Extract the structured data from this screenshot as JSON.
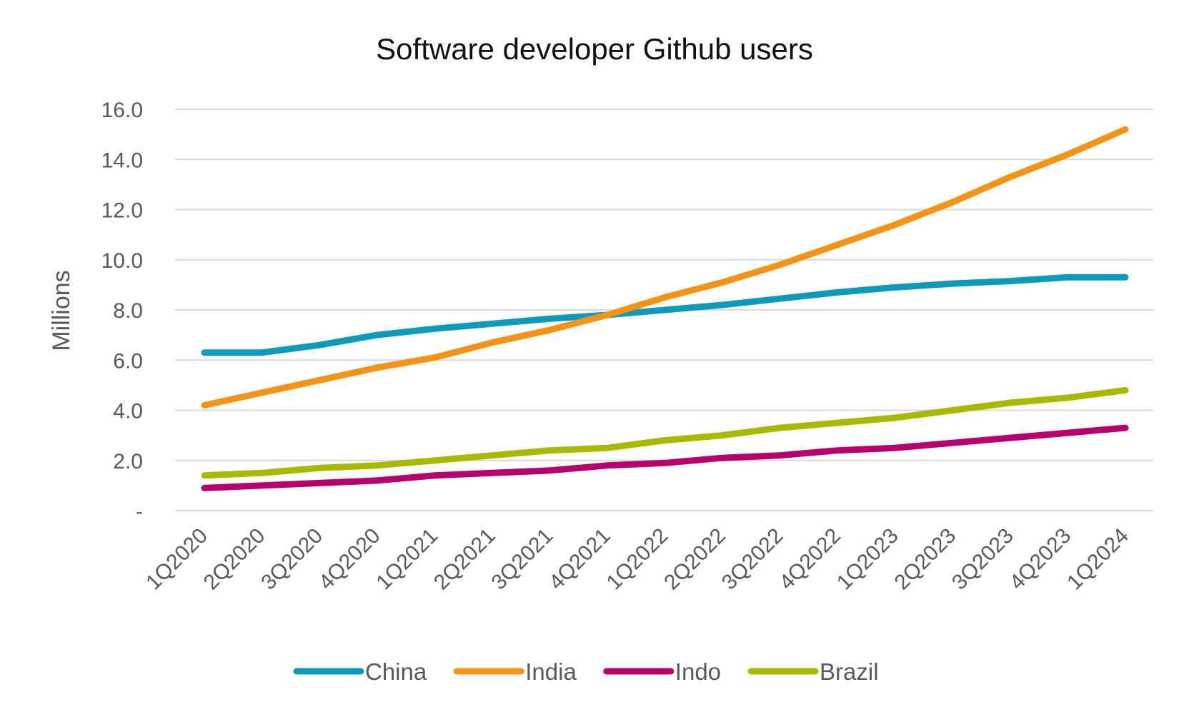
{
  "chart_data": {
    "type": "line",
    "title": "Software developer Github users",
    "xlabel": "",
    "ylabel": "Millions",
    "ylim": [
      0,
      16
    ],
    "yticks": [
      {
        "value": 0,
        "label": "-"
      },
      {
        "value": 2,
        "label": "2.0"
      },
      {
        "value": 4,
        "label": "4.0"
      },
      {
        "value": 6,
        "label": "6.0"
      },
      {
        "value": 8,
        "label": "8.0"
      },
      {
        "value": 10,
        "label": "10.0"
      },
      {
        "value": 12,
        "label": "12.0"
      },
      {
        "value": 14,
        "label": "14.0"
      },
      {
        "value": 16,
        "label": "16.0"
      }
    ],
    "grid": true,
    "legend_position": "bottom",
    "categories": [
      "1Q2020",
      "2Q2020",
      "3Q2020",
      "4Q2020",
      "1Q2021",
      "2Q2021",
      "3Q2021",
      "4Q2021",
      "1Q2022",
      "2Q2022",
      "3Q2022",
      "4Q2022",
      "1Q2023",
      "2Q2023",
      "3Q2023",
      "4Q2023",
      "1Q2024"
    ],
    "series": [
      {
        "name": "China",
        "color": "#0e9ab8",
        "values": [
          6.3,
          6.3,
          6.6,
          7.0,
          7.25,
          7.45,
          7.65,
          7.8,
          8.0,
          8.2,
          8.45,
          8.7,
          8.9,
          9.05,
          9.15,
          9.3,
          9.3
        ]
      },
      {
        "name": "India",
        "color": "#f39419",
        "values": [
          4.2,
          4.7,
          5.2,
          5.7,
          6.1,
          6.7,
          7.2,
          7.8,
          8.5,
          9.1,
          9.8,
          10.6,
          11.4,
          12.3,
          13.3,
          14.2,
          15.2
        ]
      },
      {
        "name": "Indo",
        "color": "#b5006e",
        "values": [
          0.9,
          1.0,
          1.1,
          1.2,
          1.4,
          1.5,
          1.6,
          1.8,
          1.9,
          2.1,
          2.2,
          2.4,
          2.5,
          2.7,
          2.9,
          3.1,
          3.3
        ]
      },
      {
        "name": "Brazil",
        "color": "#a9b900",
        "values": [
          1.4,
          1.5,
          1.7,
          1.8,
          2.0,
          2.2,
          2.4,
          2.5,
          2.8,
          3.0,
          3.3,
          3.5,
          3.7,
          4.0,
          4.3,
          4.5,
          4.8
        ]
      }
    ]
  }
}
